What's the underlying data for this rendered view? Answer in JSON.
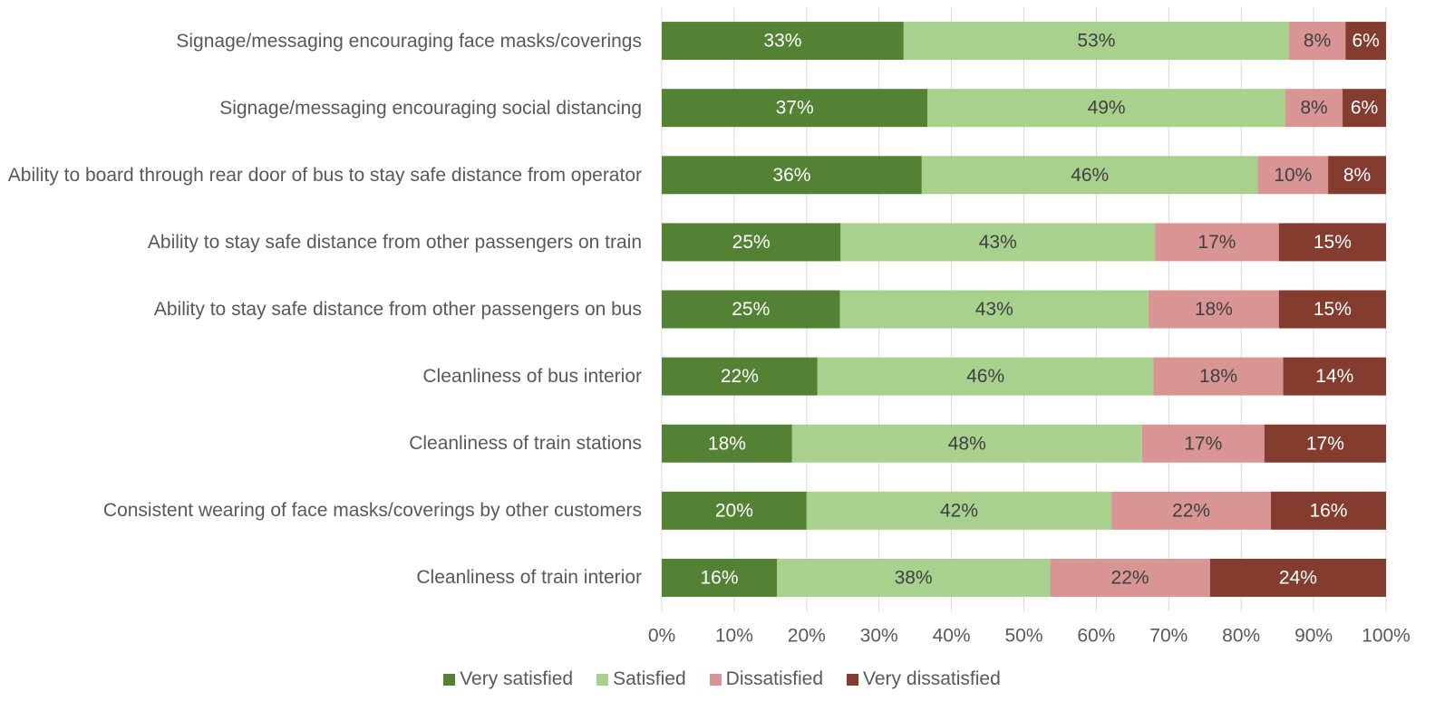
{
  "chart_data": {
    "type": "stacked-bar-horizontal",
    "categories": [
      "Signage/messaging encouraging face masks/coverings",
      "Signage/messaging encouraging social distancing",
      "Ability to board through rear door of bus to stay safe distance from operator",
      "Ability to stay safe distance from other passengers on train",
      "Ability to stay safe distance from other passengers on bus",
      "Cleanliness of bus interior",
      "Cleanliness of train stations",
      "Consistent wearing of face masks/coverings by other customers",
      "Cleanliness of train interior"
    ],
    "series": [
      {
        "name": "Very satisfied",
        "color": "#548235",
        "values": [
          33.4,
          36.7,
          35.9,
          24.7,
          24.6,
          21.5,
          18.0,
          20.0,
          15.9
        ],
        "value_labels": [
          "33%",
          "37%",
          "36%",
          "25%",
          "25%",
          "22%",
          "18%",
          "20%",
          "16%"
        ]
      },
      {
        "name": "Satisfied",
        "color": "#a9d18e",
        "values": [
          53.2,
          49.4,
          46.4,
          43.4,
          42.6,
          46.4,
          48.3,
          42.1,
          37.7
        ],
        "value_labels": [
          "53%",
          "49%",
          "46%",
          "43%",
          "43%",
          "46%",
          "48%",
          "42%",
          "38%"
        ]
      },
      {
        "name": "Dissatisfied",
        "color": "#d99594",
        "values": [
          7.8,
          7.9,
          9.7,
          17.1,
          18.0,
          17.9,
          16.9,
          22.0,
          22.1
        ],
        "value_labels": [
          "8%",
          "8%",
          "10%",
          "17%",
          "18%",
          "18%",
          "17%",
          "22%",
          "22%"
        ]
      },
      {
        "name": "Very dissatisfied",
        "color": "#843c2f",
        "values": [
          5.6,
          6.0,
          8.0,
          14.8,
          14.8,
          14.2,
          16.8,
          15.9,
          24.3
        ],
        "value_labels": [
          "6%",
          "6%",
          "8%",
          "15%",
          "15%",
          "14%",
          "17%",
          "16%",
          "24%"
        ]
      }
    ],
    "xlim": [
      0,
      100
    ],
    "xticks": [
      {
        "value": 0,
        "label": "0%"
      },
      {
        "value": 10,
        "label": "10%"
      },
      {
        "value": 20,
        "label": "20%"
      },
      {
        "value": 30,
        "label": "30%"
      },
      {
        "value": 40,
        "label": "40%"
      },
      {
        "value": 50,
        "label": "50%"
      },
      {
        "value": 60,
        "label": "60%"
      },
      {
        "value": 70,
        "label": "70%"
      },
      {
        "value": 80,
        "label": "80%"
      },
      {
        "value": 90,
        "label": "90%"
      },
      {
        "value": 100,
        "label": "100%"
      }
    ],
    "grid": true,
    "legend": "bottom"
  }
}
